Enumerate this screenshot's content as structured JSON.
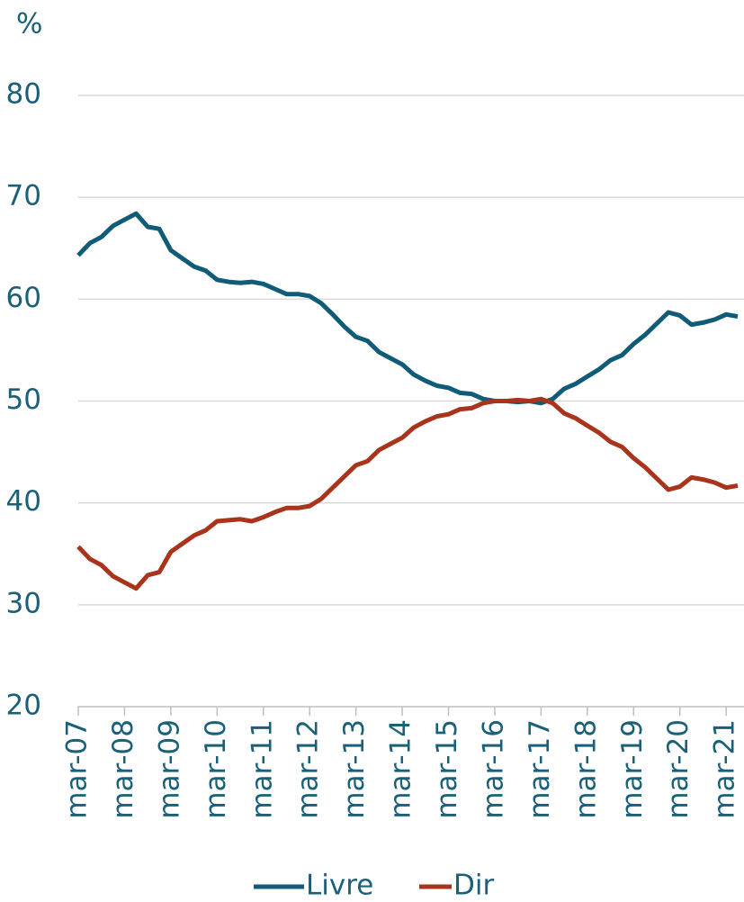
{
  "chart_data": {
    "type": "line",
    "y_unit_label": "%",
    "categories": [
      "mar-07",
      null,
      null,
      null,
      "mar-08",
      null,
      null,
      null,
      "mar-09",
      null,
      null,
      null,
      "mar-10",
      null,
      null,
      null,
      "mar-11",
      null,
      null,
      null,
      "mar-12",
      null,
      null,
      null,
      "mar-13",
      null,
      null,
      null,
      "mar-14",
      null,
      null,
      null,
      "mar-15",
      null,
      null,
      null,
      "mar-16",
      null,
      null,
      null,
      "mar-17",
      null,
      null,
      null,
      "mar-18",
      null,
      null,
      null,
      "mar-19",
      null,
      null,
      null,
      "mar-20",
      null,
      null,
      null,
      "mar-21",
      null
    ],
    "series": [
      {
        "name": "Livre",
        "color": "#0f5b78",
        "values": [
          64.3,
          65.5,
          66.1,
          67.2,
          67.8,
          68.4,
          67.1,
          66.9,
          64.8,
          64.0,
          63.2,
          62.8,
          61.9,
          61.7,
          61.6,
          61.7,
          61.5,
          61.0,
          60.5,
          60.5,
          60.3,
          59.6,
          58.5,
          57.3,
          56.3,
          55.9,
          54.8,
          54.2,
          53.6,
          52.6,
          52.0,
          51.5,
          51.3,
          50.8,
          50.7,
          50.2,
          50.0,
          50.0,
          49.9,
          50.0,
          49.8,
          50.2,
          51.2,
          51.7,
          52.4,
          53.1,
          54.0,
          54.5,
          55.6,
          56.5,
          57.6,
          58.7,
          58.4,
          57.5,
          57.7,
          58.0,
          58.5,
          58.3
        ]
      },
      {
        "name": "Dir",
        "color": "#a9331b",
        "values": [
          35.7,
          34.5,
          33.9,
          32.8,
          32.2,
          31.6,
          32.9,
          33.2,
          35.2,
          36.0,
          36.8,
          37.3,
          38.2,
          38.3,
          38.4,
          38.2,
          38.6,
          39.1,
          39.5,
          39.5,
          39.7,
          40.4,
          41.5,
          42.6,
          43.7,
          44.1,
          45.2,
          45.8,
          46.4,
          47.4,
          48.0,
          48.5,
          48.7,
          49.2,
          49.3,
          49.8,
          50.0,
          50.0,
          50.1,
          50.0,
          50.2,
          49.8,
          48.8,
          48.3,
          47.6,
          46.9,
          46.0,
          45.5,
          44.4,
          43.5,
          42.4,
          41.3,
          41.6,
          42.5,
          42.3,
          42.0,
          41.5,
          41.7
        ]
      }
    ],
    "ylim": [
      20,
      80
    ],
    "yticks": [
      20,
      30,
      40,
      50,
      60,
      70,
      80
    ],
    "grid": true,
    "legend": "bottom"
  }
}
